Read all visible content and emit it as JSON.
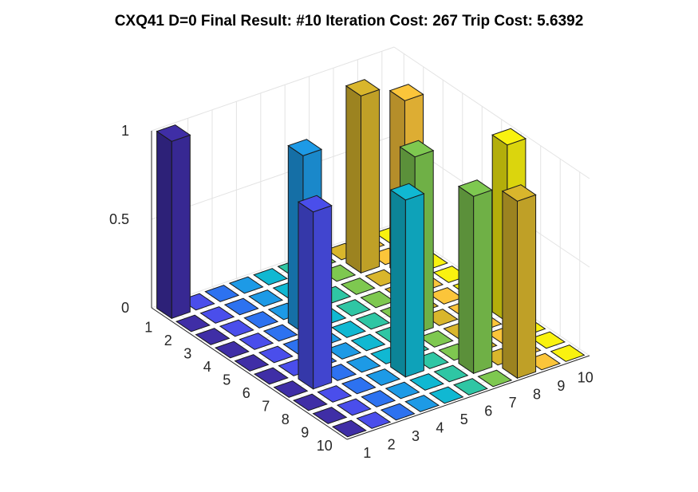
{
  "chart_data": {
    "type": "bar3",
    "title": "CXQ41 D=0 Final Result: #10 Iteration Cost: 267 Trip Cost: 5.6392",
    "x_ticks": [
      "1",
      "2",
      "3",
      "4",
      "5",
      "6",
      "7",
      "8",
      "9",
      "10"
    ],
    "y_ticks": [
      "1",
      "2",
      "3",
      "4",
      "5",
      "6",
      "7",
      "8",
      "9",
      "10"
    ],
    "z_ticks": [
      "0",
      "0.5",
      "1"
    ],
    "zlim": [
      0,
      1
    ],
    "grid": true,
    "colormap": "parula",
    "series_colors": [
      "#3f2ea6",
      "#4a4eeb",
      "#2d72f0",
      "#1d9ae6",
      "#10b8d2",
      "#2fc6a4",
      "#7ec850",
      "#d9b62c",
      "#fbc53a",
      "#f9f20f"
    ],
    "matrix": [
      [
        1,
        0,
        0,
        0,
        0,
        0,
        0,
        0,
        0,
        0
      ],
      [
        0,
        0,
        0,
        0,
        0,
        0,
        0,
        0,
        0,
        0
      ],
      [
        0,
        0,
        0,
        0,
        0,
        0,
        0,
        0,
        0,
        0
      ],
      [
        0,
        0,
        0,
        1,
        0,
        0,
        0,
        0,
        0,
        0
      ],
      [
        0,
        0,
        0,
        0,
        0,
        0,
        0,
        0,
        0,
        0
      ],
      [
        0,
        0,
        0,
        0,
        0,
        0,
        0,
        0,
        0,
        0
      ],
      [
        0,
        1,
        0,
        0,
        0,
        0,
        0,
        0,
        0,
        0
      ],
      [
        0,
        0,
        0,
        0,
        1,
        0,
        0,
        0,
        0,
        0
      ],
      [
        0,
        0,
        0,
        0,
        0,
        0,
        1,
        0,
        0,
        0
      ],
      [
        0,
        0,
        0,
        0,
        0,
        0,
        0,
        1,
        0,
        0
      ]
    ],
    "extra_bars": [
      {
        "row": 2,
        "col": 8,
        "value": 1
      },
      {
        "row": 3,
        "col": 9,
        "value": 1
      },
      {
        "row": 6,
        "col": 7,
        "value": 1
      },
      {
        "row": 7,
        "col": 10,
        "value": 1
      }
    ]
  }
}
